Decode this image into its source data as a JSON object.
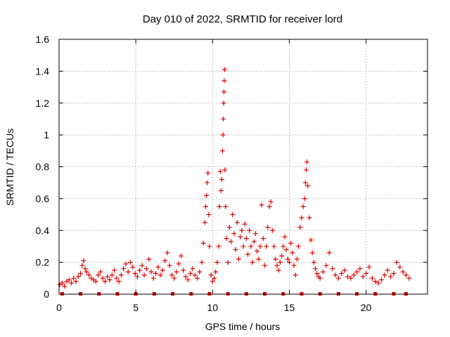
{
  "chart_data": {
    "type": "scatter",
    "title": "Day 010 of 2022, SRMTID for receiver lord",
    "xlabel": "GPS time / hours",
    "ylabel": "SRMTID / TECUs",
    "xlim": [
      0,
      24
    ],
    "ylim": [
      0,
      1.6
    ],
    "x_ticks": [
      0,
      5,
      10,
      15,
      20
    ],
    "x_tick_labels": [
      "0",
      "5",
      "10",
      "15",
      "20"
    ],
    "y_ticks": [
      0,
      0.2,
      0.4,
      0.6,
      0.8,
      1.0,
      1.2,
      1.4,
      1.6
    ],
    "y_tick_labels": [
      "0",
      "0.2",
      "0.4",
      "0.6",
      "0.8",
      "1",
      "1.2",
      "1.4",
      "1.6"
    ],
    "grid": true,
    "marker": "+",
    "color": "#e00000",
    "baseline_markers_x": [
      0.2,
      1.4,
      2.6,
      3.8,
      5.0,
      6.2,
      7.4,
      8.6,
      9.8,
      11.0,
      12.2,
      13.4,
      14.6,
      15.8,
      17.0,
      18.2,
      19.4,
      20.6,
      21.8,
      22.6
    ],
    "series": [
      {
        "name": "SRMTID",
        "points": [
          [
            0.05,
            0.06
          ],
          [
            0.2,
            0.07
          ],
          [
            0.35,
            0.05
          ],
          [
            0.5,
            0.08
          ],
          [
            0.65,
            0.09
          ],
          [
            0.8,
            0.07
          ],
          [
            0.95,
            0.1
          ],
          [
            1.1,
            0.08
          ],
          [
            1.25,
            0.11
          ],
          [
            1.4,
            0.13
          ],
          [
            1.5,
            0.18
          ],
          [
            1.6,
            0.21
          ],
          [
            1.7,
            0.16
          ],
          [
            1.8,
            0.14
          ],
          [
            1.95,
            0.12
          ],
          [
            2.1,
            0.1
          ],
          [
            2.25,
            0.09
          ],
          [
            2.4,
            0.08
          ],
          [
            2.55,
            0.12
          ],
          [
            2.7,
            0.14
          ],
          [
            2.85,
            0.1
          ],
          [
            3.0,
            0.08
          ],
          [
            3.15,
            0.11
          ],
          [
            3.3,
            0.09
          ],
          [
            3.45,
            0.12
          ],
          [
            3.6,
            0.15
          ],
          [
            3.75,
            0.1
          ],
          [
            3.9,
            0.08
          ],
          [
            4.05,
            0.12
          ],
          [
            4.2,
            0.16
          ],
          [
            4.35,
            0.19
          ],
          [
            4.5,
            0.14
          ],
          [
            4.65,
            0.2
          ],
          [
            4.8,
            0.17
          ],
          [
            4.95,
            0.13
          ],
          [
            5.1,
            0.11
          ],
          [
            5.25,
            0.15
          ],
          [
            5.4,
            0.18
          ],
          [
            5.55,
            0.12
          ],
          [
            5.7,
            0.16
          ],
          [
            5.85,
            0.22
          ],
          [
            6.0,
            0.14
          ],
          [
            6.15,
            0.1
          ],
          [
            6.3,
            0.13
          ],
          [
            6.45,
            0.17
          ],
          [
            6.6,
            0.12
          ],
          [
            6.75,
            0.15
          ],
          [
            6.9,
            0.21
          ],
          [
            7.05,
            0.26
          ],
          [
            7.2,
            0.18
          ],
          [
            7.35,
            0.12
          ],
          [
            7.5,
            0.1
          ],
          [
            7.65,
            0.14
          ],
          [
            7.8,
            0.19
          ],
          [
            7.95,
            0.24
          ],
          [
            8.1,
            0.15
          ],
          [
            8.25,
            0.11
          ],
          [
            8.4,
            0.09
          ],
          [
            8.55,
            0.13
          ],
          [
            8.7,
            0.16
          ],
          [
            8.85,
            0.12
          ],
          [
            9.0,
            0.1
          ],
          [
            9.15,
            0.14
          ],
          [
            9.3,
            0.2
          ],
          [
            9.4,
            0.32
          ],
          [
            9.5,
            0.45
          ],
          [
            9.55,
            0.55
          ],
          [
            9.6,
            0.62
          ],
          [
            9.65,
            0.7
          ],
          [
            9.7,
            0.76
          ],
          [
            9.75,
            0.5
          ],
          [
            9.8,
            0.3
          ],
          [
            9.9,
            0.12
          ],
          [
            10.0,
            0.08
          ],
          [
            10.1,
            0.1
          ],
          [
            10.2,
            0.14
          ],
          [
            10.3,
            0.2
          ],
          [
            10.4,
            0.3
          ],
          [
            10.45,
            0.55
          ],
          [
            10.5,
            0.77
          ],
          [
            10.55,
            0.65
          ],
          [
            10.6,
            0.72
          ],
          [
            10.65,
            0.9
          ],
          [
            10.68,
            1.0
          ],
          [
            10.7,
            1.1
          ],
          [
            10.72,
            1.2
          ],
          [
            10.74,
            1.27
          ],
          [
            10.76,
            1.34
          ],
          [
            10.78,
            1.41
          ],
          [
            10.8,
            0.78
          ],
          [
            10.85,
            0.55
          ],
          [
            10.9,
            0.35
          ],
          [
            11.0,
            0.2
          ],
          [
            11.1,
            0.42
          ],
          [
            11.2,
            0.33
          ],
          [
            11.3,
            0.5
          ],
          [
            11.4,
            0.38
          ],
          [
            11.5,
            0.28
          ],
          [
            11.6,
            0.45
          ],
          [
            11.7,
            0.22
          ],
          [
            11.8,
            0.36
          ],
          [
            11.9,
            0.4
          ],
          [
            12.0,
            0.3
          ],
          [
            12.1,
            0.44
          ],
          [
            12.2,
            0.35
          ],
          [
            12.3,
            0.25
          ],
          [
            12.4,
            0.4
          ],
          [
            12.5,
            0.3
          ],
          [
            12.6,
            0.2
          ],
          [
            12.7,
            0.33
          ],
          [
            12.8,
            0.38
          ],
          [
            12.9,
            0.27
          ],
          [
            13.0,
            0.22
          ],
          [
            13.1,
            0.3
          ],
          [
            13.2,
            0.56
          ],
          [
            13.3,
            0.35
          ],
          [
            13.4,
            0.18
          ],
          [
            13.5,
            0.3
          ],
          [
            13.6,
            0.42
          ],
          [
            13.7,
            0.55
          ],
          [
            13.8,
            0.58
          ],
          [
            13.9,
            0.4
          ],
          [
            14.0,
            0.3
          ],
          [
            14.1,
            0.22
          ],
          [
            14.2,
            0.18
          ],
          [
            14.3,
            0.15
          ],
          [
            14.4,
            0.2
          ],
          [
            14.5,
            0.24
          ],
          [
            14.6,
            0.3
          ],
          [
            14.7,
            0.36
          ],
          [
            14.8,
            0.28
          ],
          [
            14.9,
            0.22
          ],
          [
            15.0,
            0.2
          ],
          [
            15.1,
            0.32
          ],
          [
            15.2,
            0.26
          ],
          [
            15.3,
            0.18
          ],
          [
            15.4,
            0.12
          ],
          [
            15.5,
            0.22
          ],
          [
            15.6,
            0.3
          ],
          [
            15.7,
            0.42
          ],
          [
            15.8,
            0.48
          ],
          [
            15.9,
            0.55
          ],
          [
            16.0,
            0.6
          ],
          [
            16.05,
            0.7
          ],
          [
            16.1,
            0.78
          ],
          [
            16.15,
            0.83
          ],
          [
            16.2,
            0.68
          ],
          [
            16.3,
            0.48
          ],
          [
            16.4,
            0.34
          ],
          [
            16.5,
            0.26
          ],
          [
            16.6,
            0.2
          ],
          [
            16.7,
            0.16
          ],
          [
            16.8,
            0.13
          ],
          [
            16.9,
            0.11
          ],
          [
            17.0,
            0.1
          ],
          [
            17.2,
            0.14
          ],
          [
            17.4,
            0.18
          ],
          [
            17.6,
            0.26
          ],
          [
            17.8,
            0.16
          ],
          [
            18.0,
            0.12
          ],
          [
            18.2,
            0.1
          ],
          [
            18.4,
            0.13
          ],
          [
            18.6,
            0.15
          ],
          [
            18.8,
            0.11
          ],
          [
            19.0,
            0.1
          ],
          [
            19.2,
            0.12
          ],
          [
            19.4,
            0.14
          ],
          [
            19.6,
            0.16
          ],
          [
            19.8,
            0.11
          ],
          [
            20.0,
            0.13
          ],
          [
            20.2,
            0.17
          ],
          [
            20.4,
            0.1
          ],
          [
            20.6,
            0.08
          ],
          [
            20.8,
            0.07
          ],
          [
            21.0,
            0.09
          ],
          [
            21.2,
            0.12
          ],
          [
            21.4,
            0.15
          ],
          [
            21.6,
            0.11
          ],
          [
            21.8,
            0.13
          ],
          [
            22.0,
            0.2
          ],
          [
            22.2,
            0.17
          ],
          [
            22.4,
            0.14
          ],
          [
            22.6,
            0.12
          ],
          [
            22.8,
            0.1
          ]
        ]
      }
    ]
  }
}
